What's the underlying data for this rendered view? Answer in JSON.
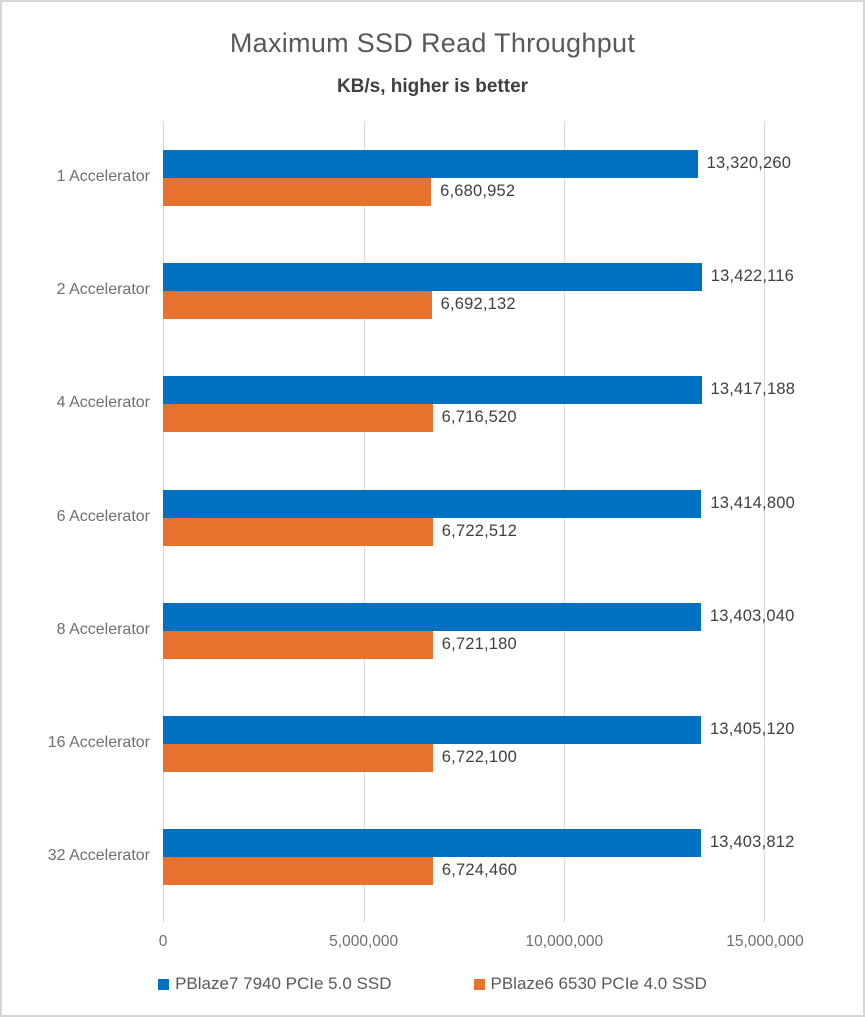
{
  "chart_data": {
    "type": "bar",
    "orientation": "horizontal",
    "title": "Maximum SSD Read Throughput",
    "subtitle": "KB/s, higher is better",
    "categories": [
      "1 Accelerator",
      "2 Accelerator",
      "4 Accelerator",
      "6 Accelerator",
      "8 Accelerator",
      "16 Accelerator",
      "32 Accelerator"
    ],
    "series": [
      {
        "name": "PBlaze7 7940 PCIe 5.0 SSD",
        "color": "#0070C0",
        "values": [
          13320260,
          13422116,
          13417188,
          13414800,
          13403040,
          13405120,
          13403812
        ],
        "labels": [
          "13,320,260",
          "13,422,116",
          "13,417,188",
          "13,414,800",
          "13,403,040",
          "13,405,120",
          "13,403,812"
        ]
      },
      {
        "name": "PBlaze6 6530 PCIe 4.0 SSD",
        "color": "#E7722E",
        "values": [
          6680952,
          6692132,
          6716520,
          6722512,
          6721180,
          6722100,
          6724460
        ],
        "labels": [
          "6,680,952",
          "6,692,132",
          "6,716,520",
          "6,722,512",
          "6,721,180",
          "6,722,100",
          "6,724,460"
        ]
      }
    ],
    "xlim": [
      0,
      15000000
    ],
    "x_ticks": [
      0,
      5000000,
      10000000,
      15000000
    ],
    "x_tick_labels": [
      "0",
      "5,000,000",
      "10,000,000",
      "15,000,000"
    ],
    "grid": true,
    "gridline_color": "#D9D9D9",
    "legend_position": "bottom",
    "data_labels": true
  }
}
